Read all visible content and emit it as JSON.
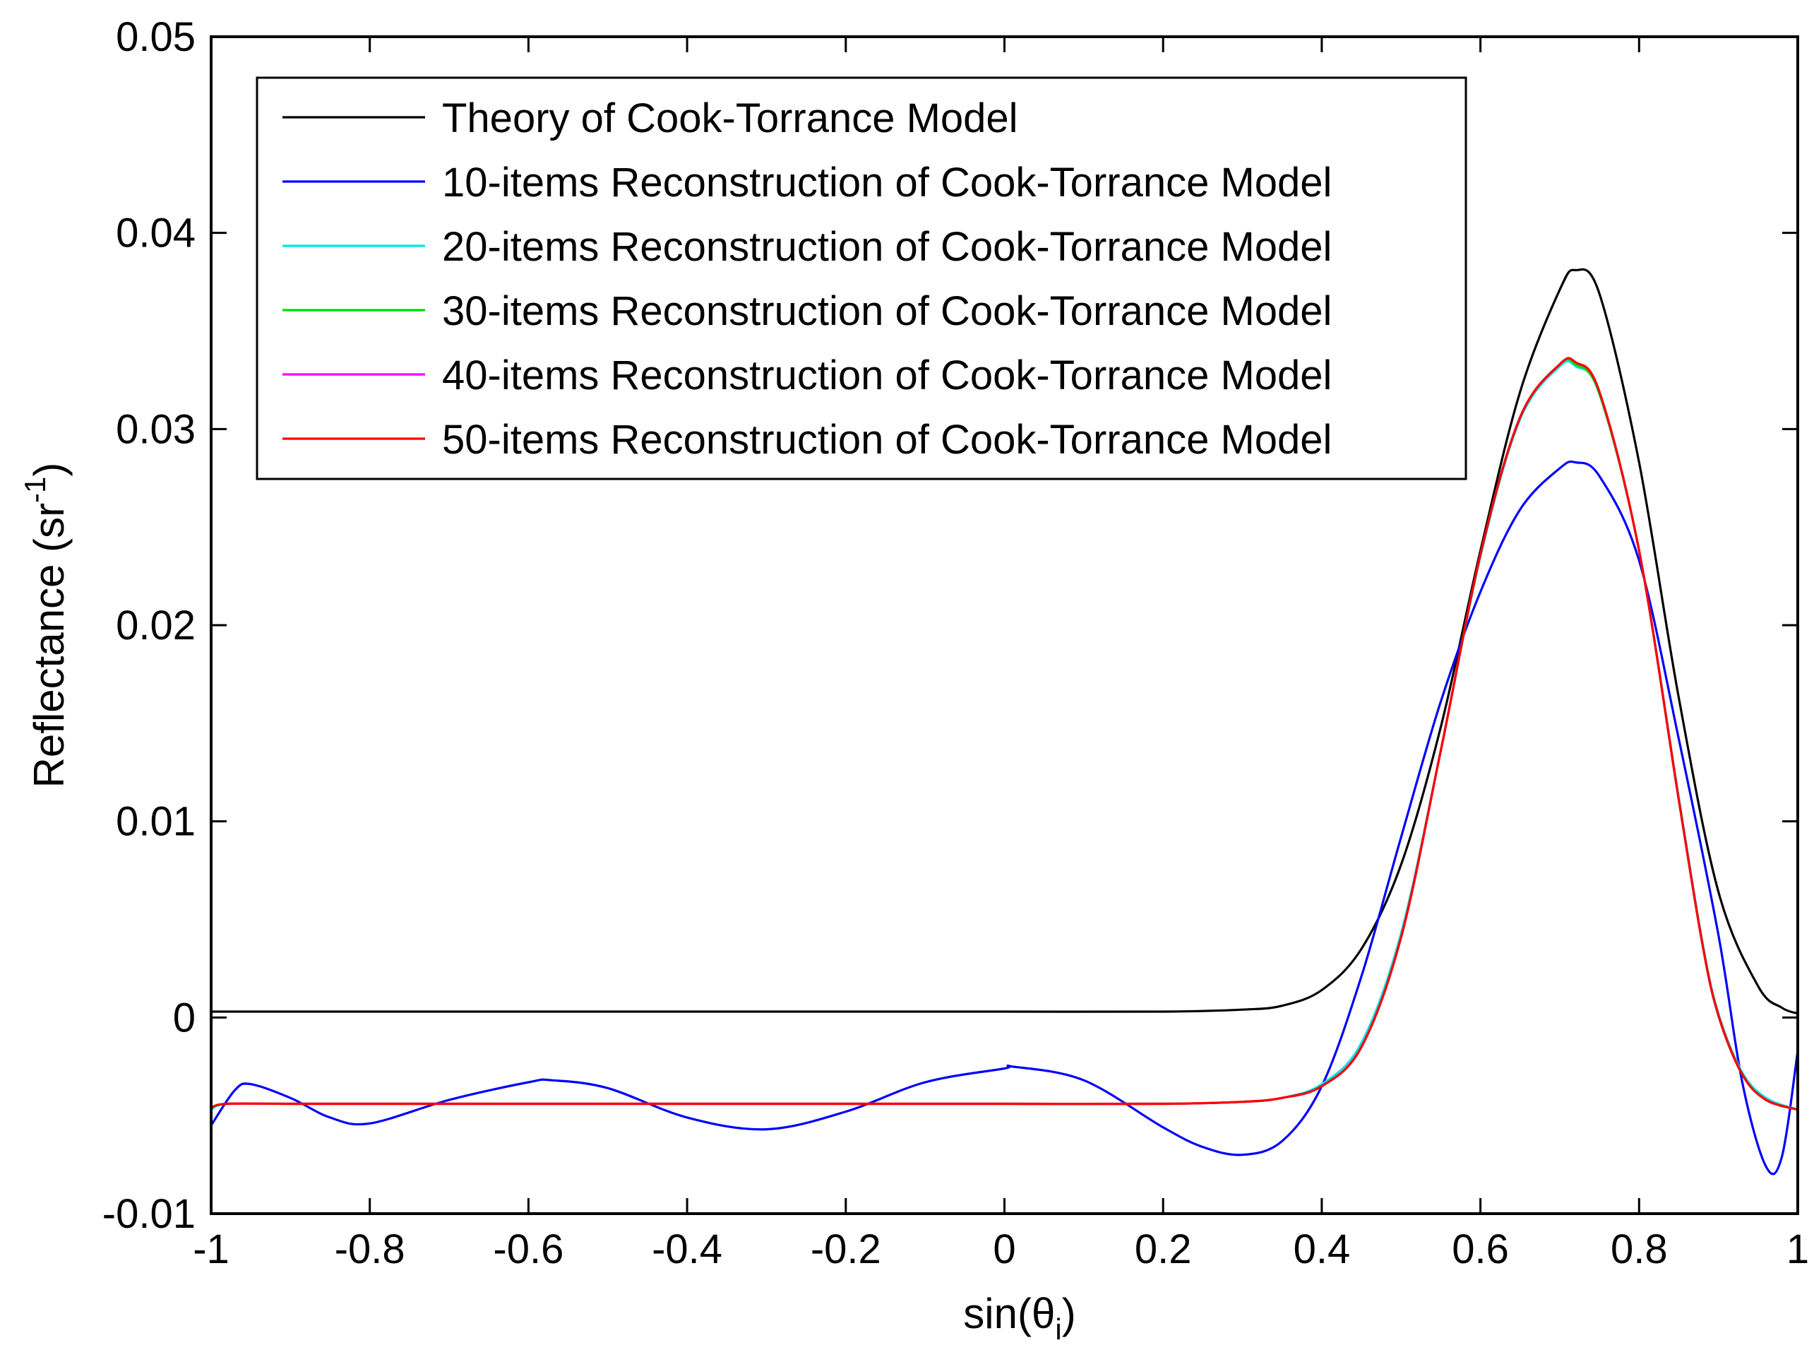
{
  "chart_data": {
    "type": "line",
    "title": "",
    "xlabel": {
      "main": "sin(θ",
      "sub": "i",
      "close": ")"
    },
    "ylabel": {
      "main": "Reflectance (sr",
      "sup": "-1",
      "close": ")"
    },
    "xlim": [
      -1,
      1
    ],
    "ylim": [
      -0.01,
      0.05
    ],
    "xticks": [
      -1,
      -0.8,
      -0.6,
      -0.4,
      -0.2,
      0,
      0.2,
      0.4,
      0.6,
      0.8,
      1
    ],
    "xtick_labels": [
      "-1",
      "-0.8",
      "-0.6",
      "-0.4",
      "-0.2",
      "0",
      "0.2",
      "0.4",
      "0.6",
      "0.8",
      "1"
    ],
    "yticks": [
      -0.01,
      0,
      0.01,
      0.02,
      0.03,
      0.04,
      0.05
    ],
    "ytick_labels": [
      "-0.01",
      "0",
      "0.01",
      "0.02",
      "0.03",
      "0.04",
      "0.05"
    ],
    "grid": false,
    "legend_position": "top-left",
    "series": [
      {
        "name": "Theory of Cook-Torrance Model",
        "color": "#000000",
        "x": [
          -1.0,
          -0.8,
          -0.6,
          -0.4,
          -0.2,
          0.0,
          0.2,
          0.3,
          0.35,
          0.4,
          0.45,
          0.5,
          0.55,
          0.6,
          0.65,
          0.7,
          0.72,
          0.75,
          0.8,
          0.85,
          0.9,
          0.95,
          0.98,
          1.0
        ],
        "y": [
          0.0003,
          0.0003,
          0.0003,
          0.0003,
          0.0003,
          0.0003,
          0.0003,
          0.0004,
          0.0006,
          0.0014,
          0.0035,
          0.0078,
          0.0148,
          0.0238,
          0.0319,
          0.0371,
          0.0381,
          0.0369,
          0.0283,
          0.0163,
          0.0064,
          0.0016,
          0.0005,
          0.0002
        ]
      },
      {
        "name": "10-items Reconstruction of Cook-Torrance Model",
        "color": "#0000ff",
        "x": [
          -1.0,
          -0.97,
          -0.95,
          -0.9,
          -0.85,
          -0.8,
          -0.7,
          -0.6,
          -0.57,
          -0.5,
          -0.4,
          -0.3,
          -0.2,
          -0.1,
          0.0,
          0.01,
          0.1,
          0.2,
          0.25,
          0.3,
          0.35,
          0.4,
          0.45,
          0.5,
          0.55,
          0.6,
          0.65,
          0.7,
          0.72,
          0.75,
          0.8,
          0.85,
          0.9,
          0.93,
          0.96,
          0.98,
          1.0
        ],
        "y": [
          -0.0055,
          -0.0037,
          -0.0034,
          -0.0041,
          -0.0051,
          -0.0054,
          -0.0042,
          -0.0033,
          -0.0032,
          -0.0036,
          -0.0051,
          -0.0057,
          -0.0048,
          -0.0033,
          -0.0026,
          -0.0025,
          -0.0032,
          -0.0056,
          -0.0066,
          -0.007,
          -0.0063,
          -0.0035,
          0.0021,
          0.0092,
          0.0161,
          0.0217,
          0.0259,
          0.028,
          0.0283,
          0.0276,
          0.0233,
          0.0142,
          0.0042,
          -0.0033,
          -0.0076,
          -0.0071,
          -0.0017
        ]
      },
      {
        "name": "20-items Reconstruction of Cook-Torrance Model",
        "color": "#00e5e5",
        "x": [
          -1.0,
          -0.98,
          -0.9,
          -0.8,
          -0.6,
          -0.4,
          -0.2,
          0.0,
          0.2,
          0.3,
          0.35,
          0.4,
          0.45,
          0.5,
          0.55,
          0.6,
          0.65,
          0.7,
          0.72,
          0.75,
          0.8,
          0.85,
          0.88,
          0.9,
          0.93,
          0.96,
          1.0
        ],
        "y": [
          -0.0047,
          -0.0044,
          -0.0044,
          -0.0044,
          -0.0044,
          -0.0044,
          -0.0044,
          -0.0044,
          -0.0044,
          -0.0043,
          -0.0041,
          -0.0034,
          -0.0013,
          0.0043,
          0.0136,
          0.0235,
          0.0305,
          0.0332,
          0.0332,
          0.0318,
          0.0238,
          0.0112,
          0.0038,
          0.0002,
          -0.0028,
          -0.0041,
          -0.0047
        ]
      },
      {
        "name": "30-items Reconstruction of Cook-Torrance Model",
        "color": "#00dd00",
        "x": [
          -1.0,
          -0.98,
          -0.9,
          -0.8,
          -0.6,
          -0.4,
          -0.2,
          0.0,
          0.2,
          0.3,
          0.35,
          0.4,
          0.45,
          0.5,
          0.55,
          0.6,
          0.65,
          0.7,
          0.72,
          0.75,
          0.8,
          0.85,
          0.88,
          0.9,
          0.93,
          0.96,
          1.0
        ],
        "y": [
          -0.0046,
          -0.0044,
          -0.0044,
          -0.0044,
          -0.0044,
          -0.0044,
          -0.0044,
          -0.0044,
          -0.0044,
          -0.0043,
          -0.0041,
          -0.0035,
          -0.0015,
          0.0041,
          0.0136,
          0.0236,
          0.0306,
          0.0333,
          0.0333,
          0.0318,
          0.0238,
          0.0111,
          0.0037,
          0.0001,
          -0.0029,
          -0.0042,
          -0.0047
        ]
      },
      {
        "name": "40-items Reconstruction of Cook-Torrance Model",
        "color": "#ff00ff",
        "x": [
          -1.0,
          -0.98,
          -0.9,
          -0.8,
          -0.6,
          -0.4,
          -0.2,
          0.0,
          0.2,
          0.3,
          0.35,
          0.4,
          0.45,
          0.5,
          0.55,
          0.6,
          0.65,
          0.7,
          0.72,
          0.75,
          0.8,
          0.85,
          0.88,
          0.9,
          0.93,
          0.96,
          1.0
        ],
        "y": [
          -0.0046,
          -0.0044,
          -0.0044,
          -0.0044,
          -0.0044,
          -0.0044,
          -0.0044,
          -0.0044,
          -0.0044,
          -0.0043,
          -0.0041,
          -0.0035,
          -0.0015,
          0.0041,
          0.0136,
          0.0236,
          0.0306,
          0.0333,
          0.0334,
          0.0319,
          0.0238,
          0.0111,
          0.0037,
          0.0001,
          -0.0029,
          -0.0042,
          -0.0047
        ]
      },
      {
        "name": "50-items Reconstruction of Cook-Torrance Model",
        "color": "#ff0000",
        "x": [
          -1.0,
          -0.98,
          -0.9,
          -0.8,
          -0.6,
          -0.4,
          -0.2,
          0.0,
          0.2,
          0.3,
          0.35,
          0.4,
          0.45,
          0.5,
          0.55,
          0.6,
          0.65,
          0.7,
          0.72,
          0.75,
          0.8,
          0.85,
          0.88,
          0.9,
          0.93,
          0.96,
          1.0
        ],
        "y": [
          -0.0046,
          -0.0044,
          -0.0044,
          -0.0044,
          -0.0044,
          -0.0044,
          -0.0044,
          -0.0044,
          -0.0044,
          -0.0043,
          -0.0041,
          -0.0035,
          -0.0015,
          0.0041,
          0.0136,
          0.0236,
          0.0306,
          0.0333,
          0.0334,
          0.0319,
          0.0238,
          0.0111,
          0.0037,
          0.0001,
          -0.0029,
          -0.0042,
          -0.0047
        ]
      }
    ]
  }
}
